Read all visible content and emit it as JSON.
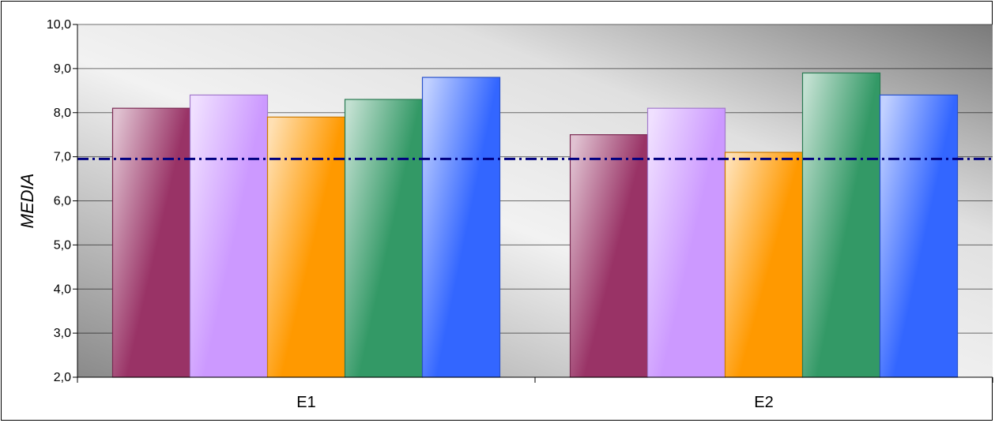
{
  "chart_data": {
    "type": "bar",
    "ylabel": "MEDIA",
    "ylim": [
      2.0,
      10.0
    ],
    "yticks": [
      "2,0",
      "3,0",
      "4,0",
      "5,0",
      "6,0",
      "7,0",
      "8,0",
      "9,0",
      "10,0"
    ],
    "categories": [
      "E1",
      "E2"
    ],
    "series": [
      {
        "values": [
          8.1,
          7.5
        ],
        "color": "#993366"
      },
      {
        "values": [
          8.4,
          8.1
        ],
        "color": "#CC99FF"
      },
      {
        "values": [
          7.9,
          7.1
        ],
        "color": "#FF9900"
      },
      {
        "values": [
          8.3,
          8.9
        ],
        "color": "#339966"
      },
      {
        "values": [
          8.8,
          8.4
        ],
        "color": "#3366FF"
      }
    ],
    "reference_line": {
      "value": 6.95,
      "style": "dash-dot",
      "color": "#000080"
    },
    "grid": true,
    "background": "gray-gradient"
  }
}
